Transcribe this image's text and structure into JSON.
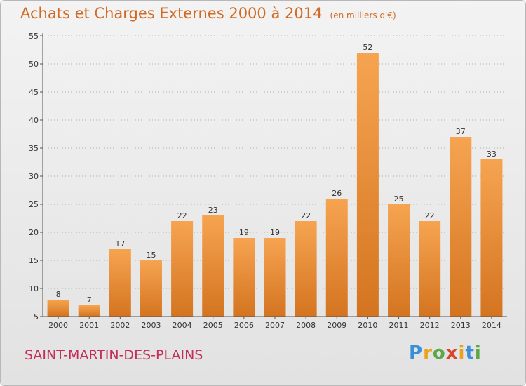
{
  "header": {
    "title": "Achats et Charges Externes 2000 à 2014",
    "unit": "(en milliers d'€)"
  },
  "footer": {
    "place": "SAINT-MARTIN-DES-PLAINS",
    "brand": "Proxiti"
  },
  "colors": {
    "bar_light": "#f6a451",
    "bar_dark": "#d47420",
    "title": "#d06a22",
    "place": "#c42d55",
    "grid": "#b0b0b0"
  },
  "chart_data": {
    "type": "bar",
    "title": "Achats et Charges Externes 2000 à 2014",
    "subtitle": "(en milliers d'€)",
    "xlabel": "",
    "ylabel": "",
    "categories": [
      "2000",
      "2001",
      "2002",
      "2003",
      "2004",
      "2005",
      "2006",
      "2007",
      "2008",
      "2009",
      "2010",
      "2011",
      "2012",
      "2013",
      "2014"
    ],
    "values": [
      8,
      7,
      17,
      15,
      22,
      23,
      19,
      19,
      22,
      26,
      52,
      25,
      22,
      37,
      33
    ],
    "ylim": [
      5,
      55
    ],
    "yticks": [
      5,
      10,
      15,
      20,
      25,
      30,
      35,
      40,
      45,
      50,
      55
    ],
    "grid": true,
    "legend": "none"
  }
}
